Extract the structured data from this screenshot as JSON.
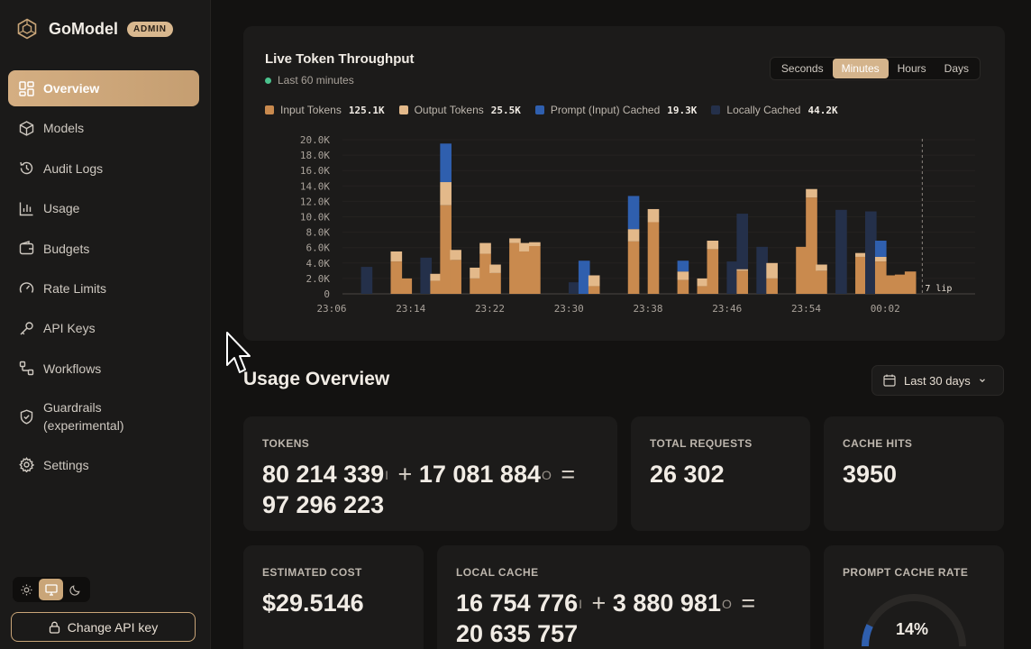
{
  "app": {
    "name": "GoModel",
    "badge": "ADMIN"
  },
  "nav": [
    {
      "label": "Overview",
      "icon": "grid-icon",
      "active": true
    },
    {
      "label": "Models",
      "icon": "cube-icon"
    },
    {
      "label": "Audit Logs",
      "icon": "history-icon"
    },
    {
      "label": "Usage",
      "icon": "bar-chart-icon"
    },
    {
      "label": "Budgets",
      "icon": "wallet-icon"
    },
    {
      "label": "Rate Limits",
      "icon": "gauge-icon"
    },
    {
      "label": "API Keys",
      "icon": "key-icon"
    },
    {
      "label": "Workflows",
      "icon": "workflow-icon"
    },
    {
      "label": "Guardrails (experimental)",
      "icon": "shield-icon"
    },
    {
      "label": "Settings",
      "icon": "gear-icon"
    }
  ],
  "theme": {
    "selected": "system"
  },
  "change_api_key": "Change API key",
  "throughput": {
    "title": "Live Token Throughput",
    "subtitle": "Last 60 minutes",
    "ranges": [
      "Seconds",
      "Minutes",
      "Hours",
      "Days"
    ],
    "selected_range": "Minutes",
    "legend": [
      {
        "label": "Input Tokens",
        "value": "125.1K",
        "color": "#c98a4e"
      },
      {
        "label": "Output Tokens",
        "value": "25.5K",
        "color": "#e3b98a"
      },
      {
        "label": "Prompt (Input) Cached",
        "value": "19.3K",
        "color": "#2f5fae"
      },
      {
        "label": "Locally Cached",
        "value": "44.2K",
        "color": "#24304a"
      }
    ],
    "tooltip_fragment": "7 lip"
  },
  "chart_data": {
    "type": "bar",
    "stacked": true,
    "y_ticks": [
      "0",
      "2.0K",
      "4.0K",
      "6.0K",
      "8.0K",
      "10.0K",
      "12.0K",
      "14.0K",
      "16.0K",
      "18.0K",
      "20.0K"
    ],
    "ylim": [
      0,
      20000
    ],
    "x_ticks": [
      "23:06",
      "23:14",
      "23:22",
      "23:30",
      "23:38",
      "23:46",
      "23:54",
      "00:02"
    ],
    "x_minutes": [
      3,
      4,
      5,
      6,
      7,
      8,
      9,
      10,
      11,
      12,
      13,
      14,
      15,
      16,
      17,
      18,
      19,
      20,
      21,
      22,
      23,
      24,
      25,
      26,
      27,
      28,
      29,
      30,
      31,
      32,
      33,
      34,
      35,
      36,
      37,
      38,
      39,
      40,
      41,
      42,
      43,
      44,
      45,
      46,
      47,
      48,
      49,
      50,
      51,
      52,
      53,
      54,
      55,
      56,
      57,
      58,
      59,
      60,
      61,
      62
    ],
    "series": [
      {
        "name": "Input Tokens",
        "values": [
          0,
          0,
          0,
          4200,
          2000,
          0,
          0,
          1700,
          11500,
          4400,
          0,
          2000,
          5200,
          2700,
          0,
          6600,
          5500,
          6200,
          0,
          0,
          0,
          0,
          0,
          1000,
          0,
          0,
          0,
          6800,
          0,
          9300,
          0,
          0,
          1800,
          0,
          1000,
          5800,
          0,
          0,
          3000,
          0,
          0,
          2000,
          0,
          0,
          6100,
          12500,
          3000,
          0,
          0,
          0,
          4800,
          0,
          4200,
          2400,
          2500,
          2900,
          0,
          0,
          0,
          0
        ]
      },
      {
        "name": "Output Tokens",
        "values": [
          0,
          0,
          0,
          1300,
          0,
          0,
          0,
          900,
          3000,
          1300,
          0,
          1400,
          1400,
          1100,
          0,
          600,
          1100,
          500,
          0,
          0,
          0,
          0,
          0,
          1400,
          0,
          0,
          0,
          1600,
          0,
          1700,
          0,
          0,
          1100,
          0,
          1000,
          1100,
          0,
          0,
          200,
          0,
          0,
          2000,
          0,
          0,
          0,
          1100,
          800,
          0,
          0,
          0,
          500,
          0,
          600,
          0,
          0,
          0,
          0,
          0,
          0,
          0
        ]
      },
      {
        "name": "Prompt (Input) Cached",
        "values": [
          0,
          0,
          0,
          0,
          0,
          0,
          0,
          0,
          5000,
          0,
          0,
          0,
          0,
          0,
          0,
          0,
          0,
          0,
          0,
          0,
          0,
          0,
          4300,
          0,
          0,
          0,
          0,
          4300,
          0,
          0,
          0,
          0,
          1400,
          0,
          0,
          0,
          0,
          0,
          0,
          0,
          0,
          0,
          0,
          0,
          0,
          0,
          0,
          0,
          0,
          0,
          0,
          0,
          2100,
          0,
          0,
          0,
          0,
          0,
          0,
          0
        ]
      },
      {
        "name": "Locally Cached",
        "values": [
          3500,
          0,
          0,
          0,
          0,
          0,
          4700,
          0,
          0,
          0,
          0,
          0,
          0,
          0,
          0,
          0,
          0,
          0,
          0,
          0,
          0,
          1500,
          0,
          0,
          0,
          0,
          0,
          0,
          0,
          0,
          0,
          0,
          0,
          0,
          0,
          0,
          0,
          4200,
          7200,
          0,
          6100,
          0,
          0,
          0,
          0,
          0,
          0,
          0,
          10900,
          0,
          0,
          10700,
          0,
          0,
          0,
          0,
          0,
          0,
          0,
          0
        ]
      }
    ]
  },
  "usage": {
    "title": "Usage Overview",
    "period": "Last 30 days",
    "tokens": {
      "label": "TOKENS",
      "input": "80 214 339",
      "input_mark": "I",
      "plus": "+",
      "output": "17 081 884",
      "output_mark": "O",
      "eq": "=",
      "total": "97 296 223"
    },
    "total_requests": {
      "label": "TOTAL REQUESTS",
      "value": "26 302"
    },
    "cache_hits": {
      "label": "CACHE HITS",
      "value": "3950"
    },
    "estimated_cost": {
      "label": "ESTIMATED COST",
      "value": "$29.5146"
    },
    "local_cache": {
      "label": "LOCAL CACHE",
      "input": "16 754 776",
      "input_mark": "I",
      "plus": "+",
      "output": "3 880 981",
      "output_mark": "O",
      "eq": "=",
      "total": "20 635 757"
    },
    "prompt_cache_rate": {
      "label": "PROMPT CACHE RATE",
      "value": "14%",
      "fraction": 0.14
    }
  }
}
